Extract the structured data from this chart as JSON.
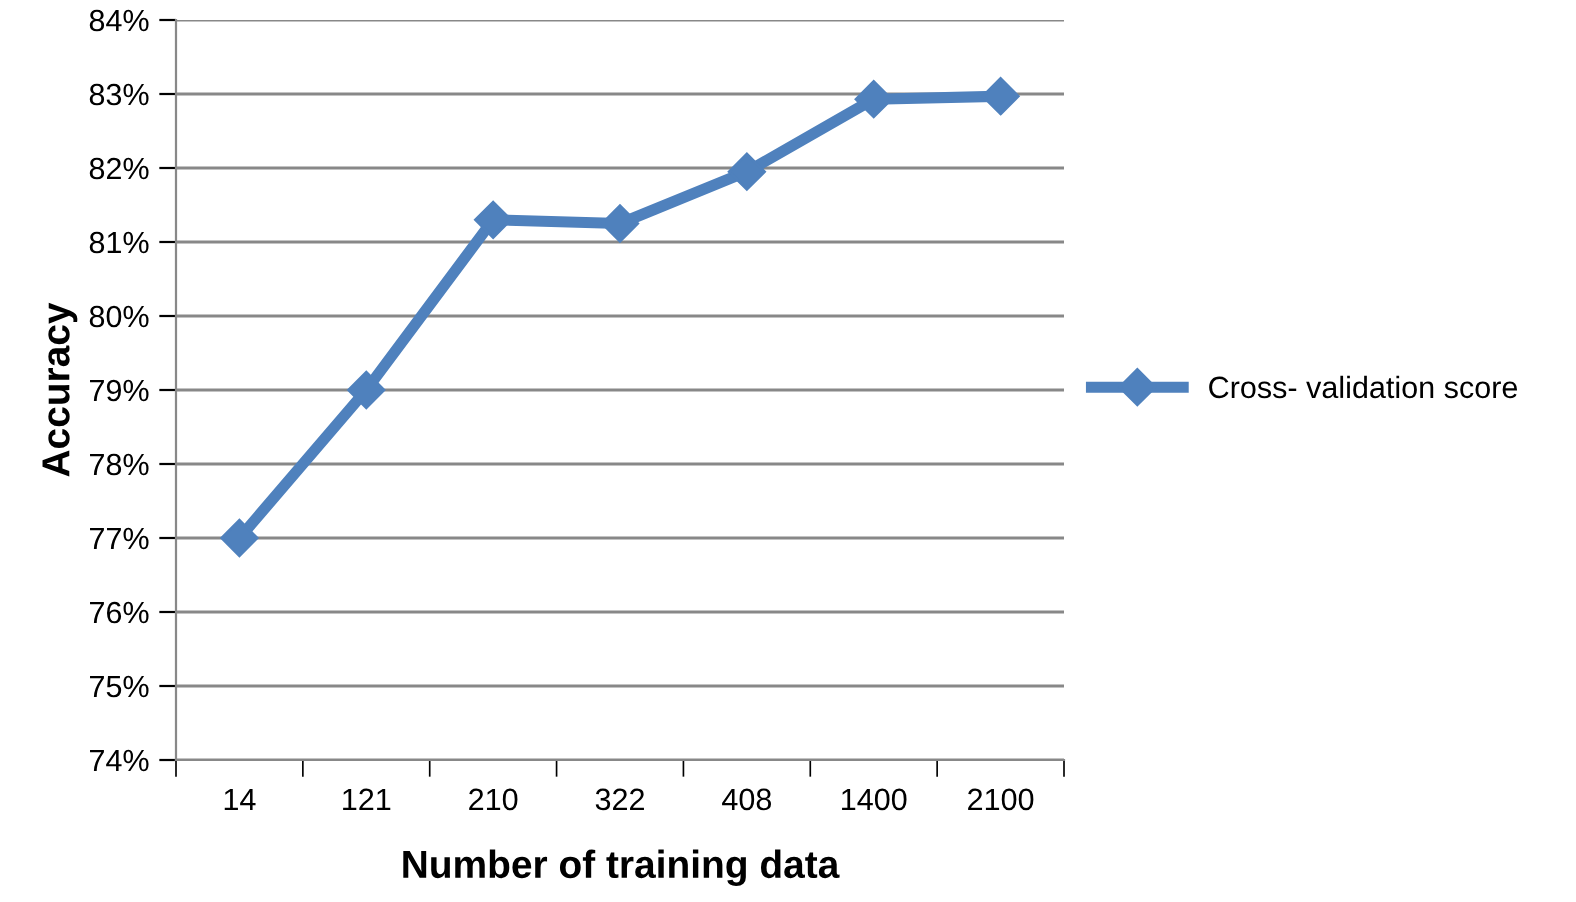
{
  "chart_data": {
    "type": "line",
    "xlabel": "Number of training data",
    "ylabel": "Accuracy",
    "categories": [
      "14",
      "121",
      "210",
      "322",
      "408",
      "1400",
      "2100"
    ],
    "series": [
      {
        "name": "Cross- validation score",
        "color": "#4f81bd",
        "values": [
          77.0,
          79.0,
          81.3,
          81.25,
          81.95,
          82.93,
          82.97
        ]
      }
    ],
    "ylim": [
      74,
      84
    ],
    "yticks": [
      {
        "value": 74,
        "label": "74%"
      },
      {
        "value": 75,
        "label": "75%"
      },
      {
        "value": 76,
        "label": "76%"
      },
      {
        "value": 77,
        "label": "77%"
      },
      {
        "value": 78,
        "label": "78%"
      },
      {
        "value": 79,
        "label": "79%"
      },
      {
        "value": 80,
        "label": "80%"
      },
      {
        "value": 81,
        "label": "81%"
      },
      {
        "value": 82,
        "label": "82%"
      },
      {
        "value": 83,
        "label": "83%"
      },
      {
        "value": 84,
        "label": "84%"
      }
    ],
    "grid": "y",
    "legend": "right",
    "marker": "diamond",
    "line_style": "solid"
  }
}
